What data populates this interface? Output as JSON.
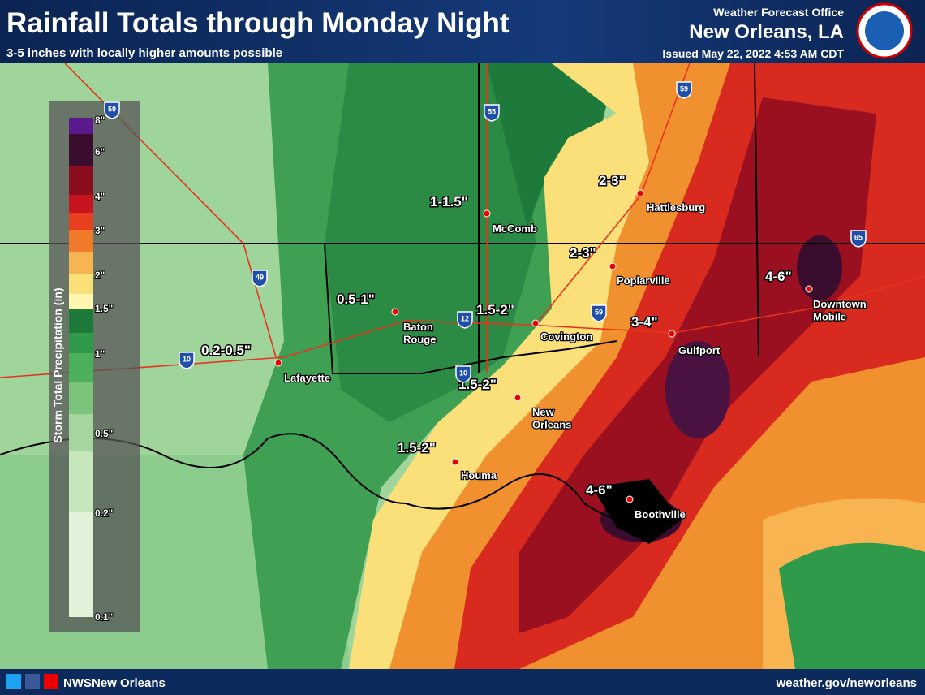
{
  "header": {
    "title": "Rainfall Totals through Monday Night",
    "subtitle": "3-5 inches with locally higher amounts possible",
    "office_line1": "Weather Forecast Office",
    "office_line2": "New Orleans, LA",
    "issued": "Issued May 22, 2022 4:53 AM CDT"
  },
  "legend": {
    "title": "Storm Total Precipitation (in)",
    "ticks": [
      "8\"",
      "6\"",
      "4\"",
      "3\"",
      "2\"",
      "1.5\"",
      "1\"",
      "0.5\"",
      "0.2\"",
      "0.1\""
    ],
    "colors": [
      "#5b1a8c",
      "#3a0d2e",
      "#8c0d1e",
      "#c8141e",
      "#e8401e",
      "#f07a2a",
      "#f8b450",
      "#fbe07a",
      "#fff6b0",
      "#1e7a3a",
      "#2f9a4a",
      "#4cb05a",
      "#7cc47a",
      "#a6d6a0",
      "#c6e6bc",
      "#e0f2d8"
    ]
  },
  "map": {
    "amounts": [
      "1-1.5\"",
      "2-3\"",
      "2-3\"",
      "0.5-1\"",
      "1.5-2\"",
      "3-4\"",
      "4-6\"",
      "0.2-0.5\"",
      "1.5-2\"",
      "1.5-2\"",
      "4-6\""
    ],
    "cities": [
      "McComb",
      "Hattiesburg",
      "Poplarville",
      "Baton Rouge",
      "Covington",
      "Gulfport",
      "Downtown Mobile",
      "Lafayette",
      "New Orleans",
      "Houma",
      "Boothville"
    ],
    "shields": [
      "59",
      "55",
      "59",
      "49",
      "10",
      "12",
      "10",
      "59",
      "65"
    ]
  },
  "footer": {
    "social": "NWSNew Orleans",
    "website": "weather.gov/neworleans"
  }
}
